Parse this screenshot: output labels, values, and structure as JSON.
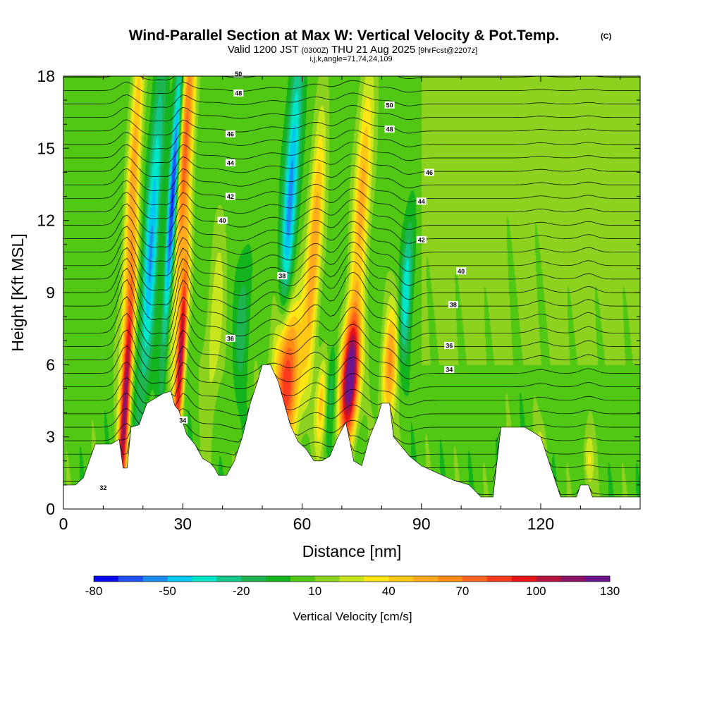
{
  "header": {
    "title": "Wind-Parallel Section at Max W: Vertical Velocity & Pot.Temp.",
    "copyright": "(C)",
    "valid_prefix": "Valid 1200 JST",
    "valid_utc": "(0300Z)",
    "valid_date": "THU 21 Aug 2025",
    "forecast": "[9hrFcst@2207z]",
    "indices": "i,j,k,angle=71,74,24,109"
  },
  "chart_data": {
    "type": "heatmap",
    "title": "Wind-Parallel Section at Max W: Vertical Velocity & Pot.Temp.",
    "xlabel": "Distance [nm]",
    "ylabel": "Height [Kft MSL]",
    "xlim": [
      0,
      145
    ],
    "ylim": [
      0,
      18
    ],
    "x_ticks": [
      0,
      30,
      60,
      90,
      120
    ],
    "x_tick_labels": [
      "0",
      "30",
      "60",
      "90",
      "120"
    ],
    "y_ticks": [
      0,
      3,
      6,
      9,
      12,
      15,
      18
    ],
    "y_tick_labels": [
      "0",
      "3",
      "6",
      "9",
      "12",
      "15",
      "18"
    ],
    "colorbar": {
      "label": "Vertical Velocity [cm/s]",
      "min": -80,
      "max": 130,
      "step": 10,
      "tick_values": [
        -80,
        -50,
        -20,
        10,
        40,
        70,
        100,
        130
      ],
      "tick_labels": [
        "-80",
        "-50",
        "-20",
        "10",
        "40",
        "70",
        "100",
        "130"
      ],
      "colors": [
        "#0a0af0",
        "#1e50f5",
        "#1e8cf0",
        "#00c8f0",
        "#00e6c8",
        "#14c88c",
        "#1eb450",
        "#14b41e",
        "#50c814",
        "#8cd21e",
        "#c8e61e",
        "#ffe614",
        "#ffc814",
        "#ffaa1e",
        "#ff8c14",
        "#ff641e",
        "#ff3c1e",
        "#e61414",
        "#b4143c",
        "#8c1464",
        "#6e148c"
      ]
    },
    "terrain": [
      [
        0,
        1.0
      ],
      [
        3,
        1.0
      ],
      [
        5,
        1.3
      ],
      [
        8,
        2.7
      ],
      [
        10,
        2.7
      ],
      [
        12,
        2.7
      ],
      [
        14,
        2.9
      ],
      [
        15,
        1.7
      ],
      [
        16,
        1.7
      ],
      [
        17,
        3.4
      ],
      [
        19,
        3.5
      ],
      [
        21,
        4.4
      ],
      [
        23,
        4.6
      ],
      [
        25,
        4.8
      ],
      [
        27,
        4.9
      ],
      [
        28,
        4.3
      ],
      [
        29,
        4.1
      ],
      [
        30,
        3.6
      ],
      [
        31,
        3.1
      ],
      [
        33,
        2.7
      ],
      [
        35,
        2.1
      ],
      [
        37,
        1.9
      ],
      [
        38,
        1.7
      ],
      [
        39,
        1.4
      ],
      [
        41,
        1.4
      ],
      [
        43,
        2.0
      ],
      [
        45,
        3.0
      ],
      [
        47,
        4.4
      ],
      [
        49,
        5.4
      ],
      [
        50,
        6.0
      ],
      [
        52,
        6.0
      ],
      [
        54,
        5.3
      ],
      [
        56,
        4.1
      ],
      [
        57,
        3.5
      ],
      [
        59,
        2.8
      ],
      [
        61,
        2.5
      ],
      [
        63,
        2.0
      ],
      [
        65,
        2.0
      ],
      [
        67,
        2.2
      ],
      [
        69,
        3.0
      ],
      [
        71,
        3.6
      ],
      [
        73,
        2.0
      ],
      [
        75,
        1.8
      ],
      [
        77,
        3.0
      ],
      [
        79,
        3.8
      ],
      [
        80,
        4.4
      ],
      [
        82,
        4.4
      ],
      [
        83,
        3.0
      ],
      [
        85,
        2.6
      ],
      [
        87,
        2.2
      ],
      [
        90,
        1.8
      ],
      [
        94,
        1.5
      ],
      [
        98,
        1.2
      ],
      [
        102,
        1.0
      ],
      [
        105,
        0.5
      ],
      [
        108,
        0.5
      ],
      [
        110,
        3.4
      ],
      [
        116,
        3.4
      ],
      [
        120,
        3.0
      ],
      [
        125,
        0.5
      ],
      [
        129,
        0.5
      ],
      [
        130,
        1.0
      ],
      [
        132,
        1.0
      ],
      [
        133,
        0.5
      ],
      [
        145,
        0.5
      ]
    ],
    "updrafts": [
      [
        15.5,
        4.5,
        110,
        1.2,
        5.5
      ],
      [
        17.5,
        14,
        50,
        1.5,
        7
      ],
      [
        29.5,
        6.5,
        105,
        1.1,
        4
      ],
      [
        30.5,
        15,
        70,
        1.8,
        7
      ],
      [
        56,
        5.5,
        85,
        3.5,
        3.2
      ],
      [
        63,
        11,
        55,
        1.8,
        5
      ],
      [
        65,
        4.5,
        45,
        1.5,
        2
      ],
      [
        72,
        5.5,
        135,
        2.2,
        2.6
      ],
      [
        75,
        13,
        50,
        2,
        5
      ],
      [
        82,
        6,
        55,
        2,
        2.5
      ],
      [
        120,
        2.3,
        20,
        1.5,
        1.2
      ],
      [
        132,
        2,
        25,
        1.3,
        1.2
      ],
      [
        38,
        7.5,
        25,
        2,
        4
      ]
    ],
    "downdrafts": [
      [
        22,
        11,
        -55,
        1.8,
        7
      ],
      [
        27.5,
        13,
        -85,
        1.2,
        6
      ],
      [
        57,
        13,
        -60,
        1.8,
        6
      ],
      [
        67,
        5,
        -25,
        1.5,
        2
      ],
      [
        86,
        9,
        -45,
        1.5,
        3
      ],
      [
        45,
        8,
        -20,
        2,
        3
      ]
    ],
    "theta_levels": [
      32,
      34,
      36,
      38,
      40,
      42,
      44,
      46,
      48,
      50
    ],
    "theta_labels": [
      "32",
      "34",
      "36",
      "38",
      "40",
      "42",
      "44",
      "46",
      "48",
      "50"
    ],
    "theta_label_points": [
      [
        10,
        0.9,
        32
      ],
      [
        30,
        3.7,
        34
      ],
      [
        97,
        6.8,
        36
      ],
      [
        97,
        5.8,
        34
      ],
      [
        42,
        7.1,
        36
      ],
      [
        55,
        9.7,
        38
      ],
      [
        98,
        8.5,
        38
      ],
      [
        100,
        9.9,
        40
      ],
      [
        40,
        12.0,
        40
      ],
      [
        90,
        11.2,
        42
      ],
      [
        42,
        13.0,
        42
      ],
      [
        90,
        12.8,
        44
      ],
      [
        42,
        14.4,
        44
      ],
      [
        92,
        14.0,
        46
      ],
      [
        42,
        15.6,
        46
      ],
      [
        82,
        15.8,
        48
      ],
      [
        44,
        17.3,
        48
      ],
      [
        82,
        16.8,
        50
      ],
      [
        44,
        18.1,
        50
      ]
    ],
    "contour_label_positions": [
      [
        104,
        19.2,
        "32"
      ],
      [
        104,
        25.5,
        "34"
      ],
      [
        103,
        23.0,
        "36"
      ],
      [
        102,
        28.0,
        "38"
      ],
      [
        99,
        31.5,
        "38"
      ],
      [
        99,
        34.5,
        "40"
      ],
      [
        91,
        37.5,
        "40"
      ],
      [
        89,
        43.5,
        "42"
      ],
      [
        83,
        49.0,
        "44"
      ],
      [
        83,
        55.0,
        "46"
      ],
      [
        87,
        64.0,
        "48"
      ],
      [
        88,
        71.0,
        "50"
      ],
      [
        100,
        65.0,
        "34"
      ],
      [
        100,
        69.0,
        "32"
      ]
    ]
  }
}
